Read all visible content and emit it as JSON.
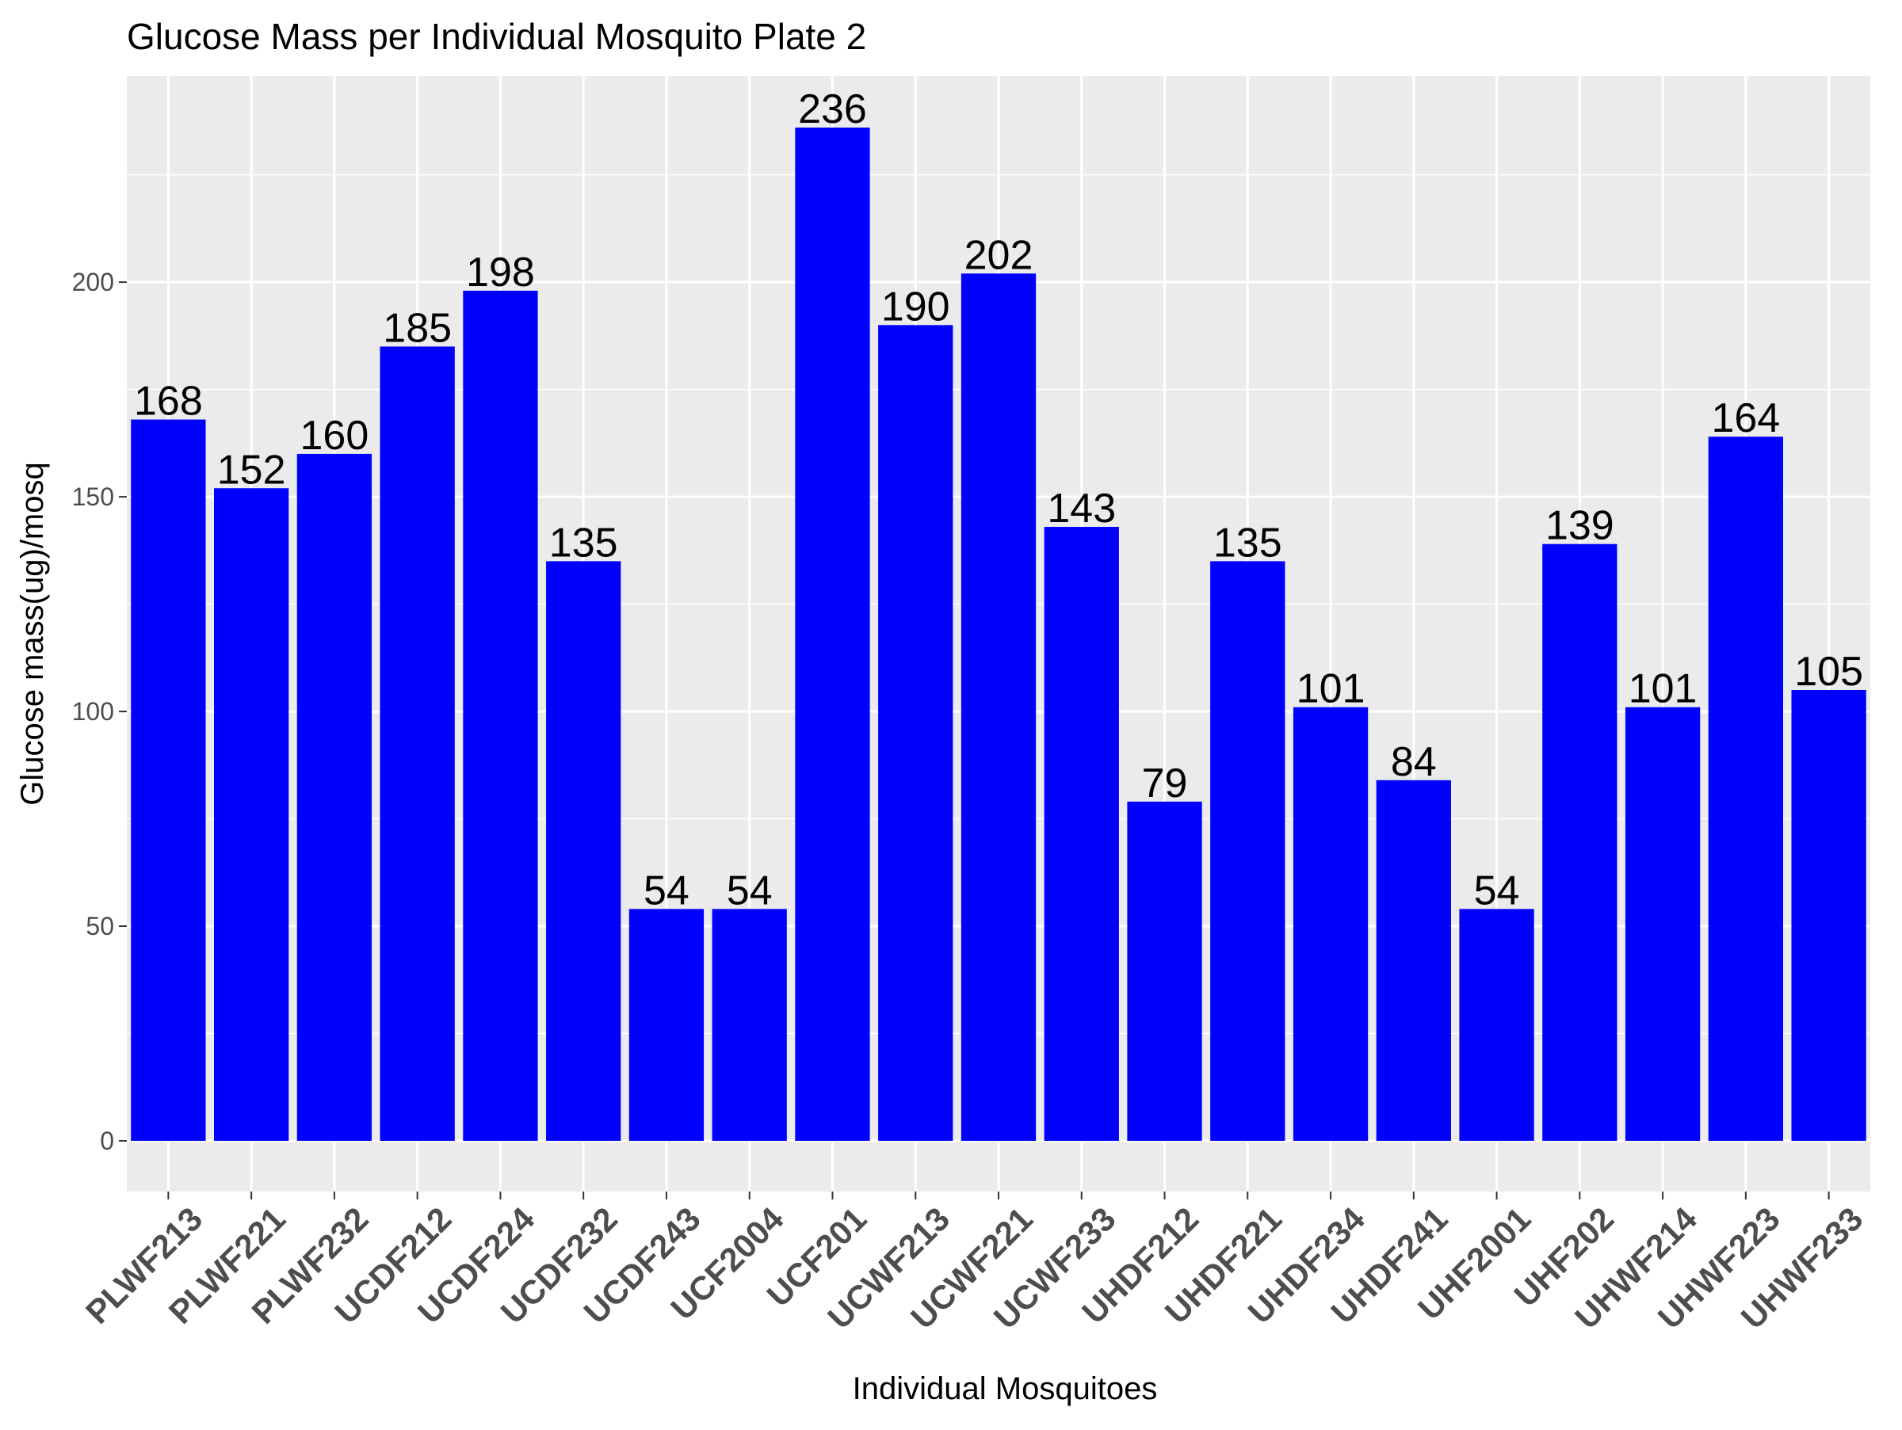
{
  "chart_data": {
    "type": "bar",
    "title": "Glucose Mass per Individual Mosquito Plate 2",
    "xlabel": "Individual Mosquitoes",
    "ylabel": "Glucose mass(ug)/mosq",
    "categories": [
      "PLWF213",
      "PLWF221",
      "PLWF232",
      "UCDF212",
      "UCDF224",
      "UCDF232",
      "UCDF243",
      "UCF2004",
      "UCF201",
      "UCWF213",
      "UCWF221",
      "UCWF233",
      "UHDF212",
      "UHDF221",
      "UHDF234",
      "UHDF241",
      "UHF2001",
      "UHF202",
      "UHWF214",
      "UHWF223",
      "UHWF233"
    ],
    "values": [
      168,
      152,
      160,
      185,
      198,
      135,
      54,
      54,
      236,
      190,
      202,
      143,
      79,
      135,
      101,
      84,
      54,
      139,
      101,
      164,
      105
    ],
    "data_labels": [
      "168",
      "152",
      "160",
      "185",
      "198",
      "135",
      "54",
      "54",
      "236",
      "190",
      "202",
      "143",
      "79",
      "135",
      "101",
      "84",
      "54",
      "139",
      "101",
      "164",
      "105"
    ],
    "ylim": [
      0,
      248
    ],
    "yticks": [
      0,
      50,
      100,
      150,
      200
    ],
    "ytick_labels": [
      "0",
      "50",
      "100",
      "150",
      "200"
    ],
    "grid": true,
    "legend": "none",
    "colors": {
      "bar": "#0000FF",
      "panel": "#EBEBEB",
      "grid": "#FFFFFF",
      "text": "#000000",
      "tick_text": "#4D4D4D"
    }
  }
}
